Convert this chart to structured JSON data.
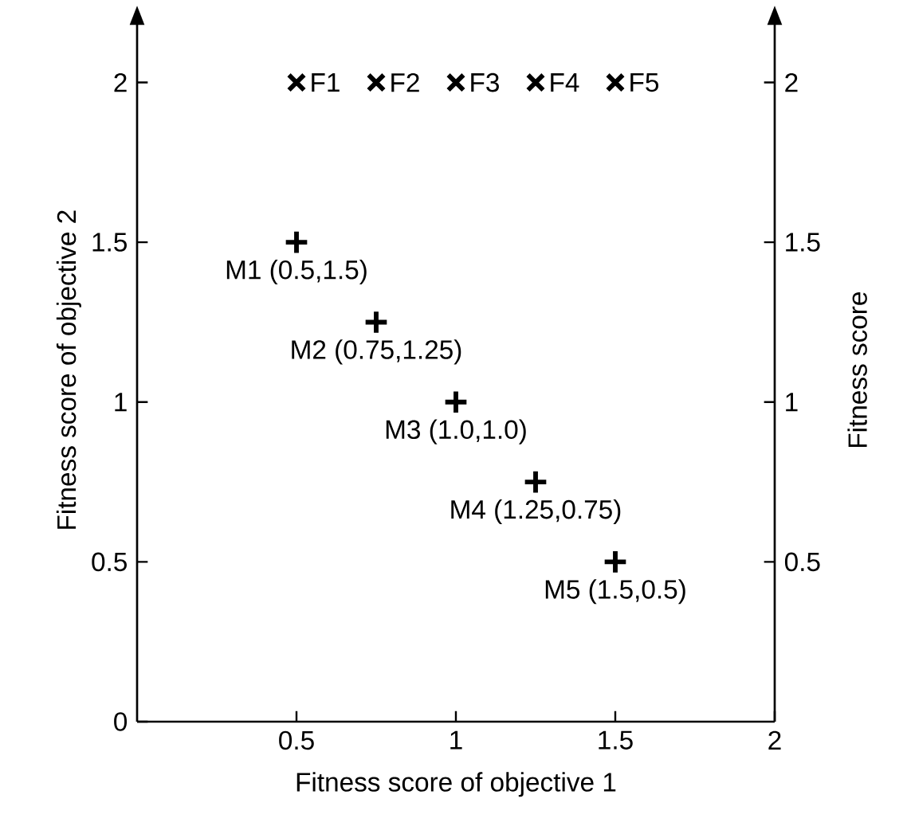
{
  "chart_data": {
    "type": "scatter",
    "xlabel": "Fitness score of objective 1",
    "ylabel": "Fitness score of objective 2",
    "y2label": "Fitness score",
    "xlim": [
      0,
      2
    ],
    "ylim": [
      0,
      2.2
    ],
    "y2lim": [
      0,
      2.2
    ],
    "xticks": [
      0.5,
      1,
      1.5,
      2
    ],
    "yticks": [
      0,
      0.5,
      1,
      1.5,
      2
    ],
    "y2ticks": [
      0.5,
      1,
      1.5,
      2
    ],
    "series": [
      {
        "color": "#000000",
        "marker": "cross",
        "x": [
          0.5,
          0.75,
          1,
          1.25,
          1.5
        ],
        "values": [
          2,
          2,
          2,
          2,
          2
        ]
      },
      {
        "color": "#000000",
        "marker": "plus",
        "x": [
          0.5,
          0.75,
          1,
          1.25,
          1.5
        ],
        "values": [
          1.5,
          1.25,
          1,
          0.75,
          0.5
        ]
      }
    ],
    "annotations": [
      {
        "text": "F1",
        "x": 0.5,
        "y": 2
      },
      {
        "text": "F2",
        "x": 0.75,
        "y": 2
      },
      {
        "text": "F3",
        "x": 1,
        "y": 2
      },
      {
        "text": "F4",
        "x": 1.25,
        "y": 2
      },
      {
        "text": "F5",
        "x": 1.5,
        "y": 2
      },
      {
        "text": "M1 (0.5,1.5)",
        "x": 0.5,
        "y": 1.5
      },
      {
        "text": "M2 (0.75,1.25)",
        "x": 0.75,
        "y": 1.25
      },
      {
        "text": "M3 (1.0,1.0)",
        "x": 1,
        "y": 1
      },
      {
        "text": "M4 (1.25,0.75)",
        "x": 1.25,
        "y": 0.75
      },
      {
        "text": "M5 (1.5,0.5)",
        "x": 1.5,
        "y": 0.5
      }
    ],
    "grid": false
  }
}
